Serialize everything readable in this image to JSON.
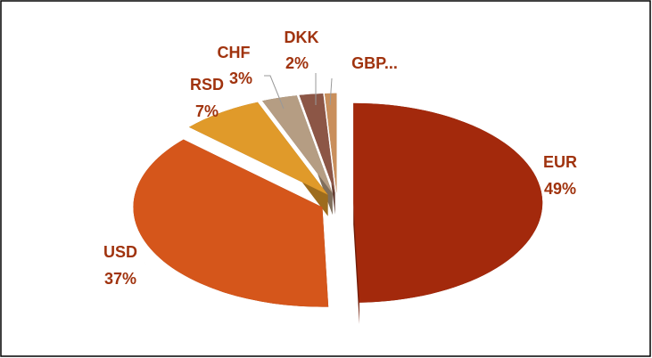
{
  "chart_data": {
    "type": "pie",
    "categories": [
      "EUR",
      "USD",
      "RSD",
      "CHF",
      "DKK",
      "GBP..."
    ],
    "values": [
      49,
      37,
      7,
      3,
      2,
      1
    ],
    "value_labels": [
      "49%",
      "37%",
      "7%",
      "3%",
      "2%",
      null
    ],
    "colors": [
      "#a3290c",
      "#d5561b",
      "#e09a2a",
      "#b59d83",
      "#8c5646",
      "#c98f5c"
    ]
  }
}
